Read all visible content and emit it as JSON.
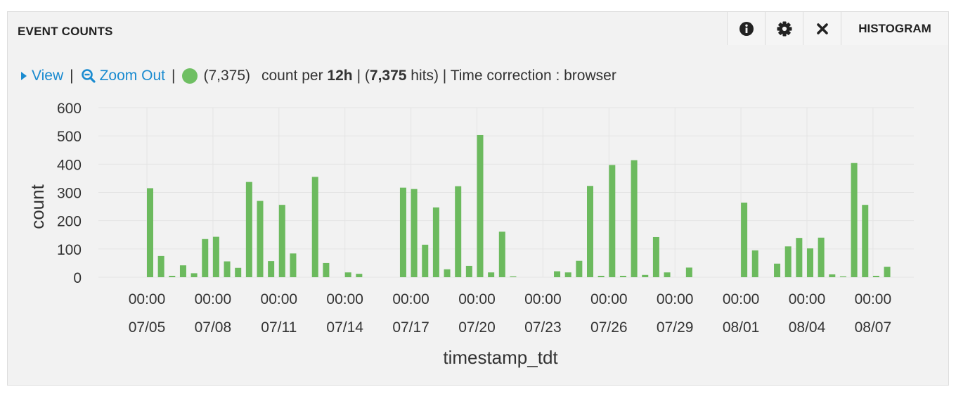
{
  "panel": {
    "title": "EVENT COUNTS",
    "buttons": {
      "info_icon": "info-icon",
      "settings_icon": "gear-icon",
      "close_icon": "close-icon",
      "mode_label": "HISTOGRAM"
    }
  },
  "toolbar": {
    "view_label": "View",
    "zoom_label": "Zoom Out",
    "sep": "|",
    "series_count": "(7,375)",
    "count_per_prefix": "count per ",
    "interval": "12h",
    "hits_open": "| (",
    "hits_value": "7,375",
    "hits_close": " hits) | Time correction : browser"
  },
  "colors": {
    "bar": "#6cba5e",
    "link": "#1a8bd0",
    "grid": "#e4e4e4"
  },
  "chart_data": {
    "type": "bar",
    "xlabel": "timestamp_tdt",
    "ylabel": "count",
    "ylim": [
      0,
      600
    ],
    "yticks": [
      0,
      100,
      200,
      300,
      400,
      500,
      600
    ],
    "x_ticks": [
      {
        "time": "00:00",
        "date": "07/05"
      },
      {
        "time": "00:00",
        "date": "07/08"
      },
      {
        "time": "00:00",
        "date": "07/11"
      },
      {
        "time": "00:00",
        "date": "07/14"
      },
      {
        "time": "00:00",
        "date": "07/17"
      },
      {
        "time": "00:00",
        "date": "07/20"
      },
      {
        "time": "00:00",
        "date": "07/23"
      },
      {
        "time": "00:00",
        "date": "07/26"
      },
      {
        "time": "00:00",
        "date": "07/29"
      },
      {
        "time": "00:00",
        "date": "08/01"
      },
      {
        "time": "00:00",
        "date": "08/04"
      },
      {
        "time": "00:00",
        "date": "08/07"
      }
    ],
    "series": [
      {
        "x": [
          "07/05 00:00",
          "07/05 12:00",
          "07/06 00:00",
          "07/06 12:00",
          "07/07 00:00",
          "07/07 12:00",
          "07/08 00:00",
          "07/08 12:00",
          "07/09 00:00",
          "07/09 12:00",
          "07/10 00:00",
          "07/10 12:00",
          "07/11 00:00",
          "07/11 12:00",
          "07/12 12:00",
          "07/13 00:00",
          "07/14 00:00",
          "07/14 12:00",
          "07/16 12:00",
          "07/17 00:00",
          "07/17 12:00",
          "07/18 00:00",
          "07/18 12:00",
          "07/19 00:00",
          "07/19 12:00",
          "07/20 00:00",
          "07/20 12:00",
          "07/21 00:00",
          "07/21 12:00",
          "07/23 12:00",
          "07/24 00:00",
          "07/24 12:00",
          "07/25 00:00",
          "07/25 12:00",
          "07/26 00:00",
          "07/26 12:00",
          "07/27 00:00",
          "07/27 12:00",
          "07/28 00:00",
          "07/28 12:00",
          "07/29 12:00",
          "08/01 00:00",
          "08/01 12:00",
          "08/02 12:00",
          "08/03 00:00",
          "08/03 12:00",
          "08/04 00:00",
          "08/04 12:00",
          "08/05 00:00",
          "08/05 12:00",
          "08/06 00:00",
          "08/06 12:00",
          "08/07 00:00",
          "08/07 12:00",
          "08/08 00:00"
        ],
        "values": [
          315,
          75,
          5,
          42,
          14,
          135,
          143,
          56,
          33,
          337,
          270,
          57,
          256,
          84,
          355,
          50,
          17,
          12,
          317,
          312,
          115,
          247,
          28,
          322,
          40,
          503,
          17,
          161,
          3,
          21,
          17,
          58,
          323,
          5,
          397,
          5,
          414,
          8,
          142,
          17,
          34,
          264,
          95,
          48,
          109,
          139,
          102,
          140,
          10,
          3,
          404,
          256,
          5,
          37,
          0
        ]
      }
    ]
  }
}
